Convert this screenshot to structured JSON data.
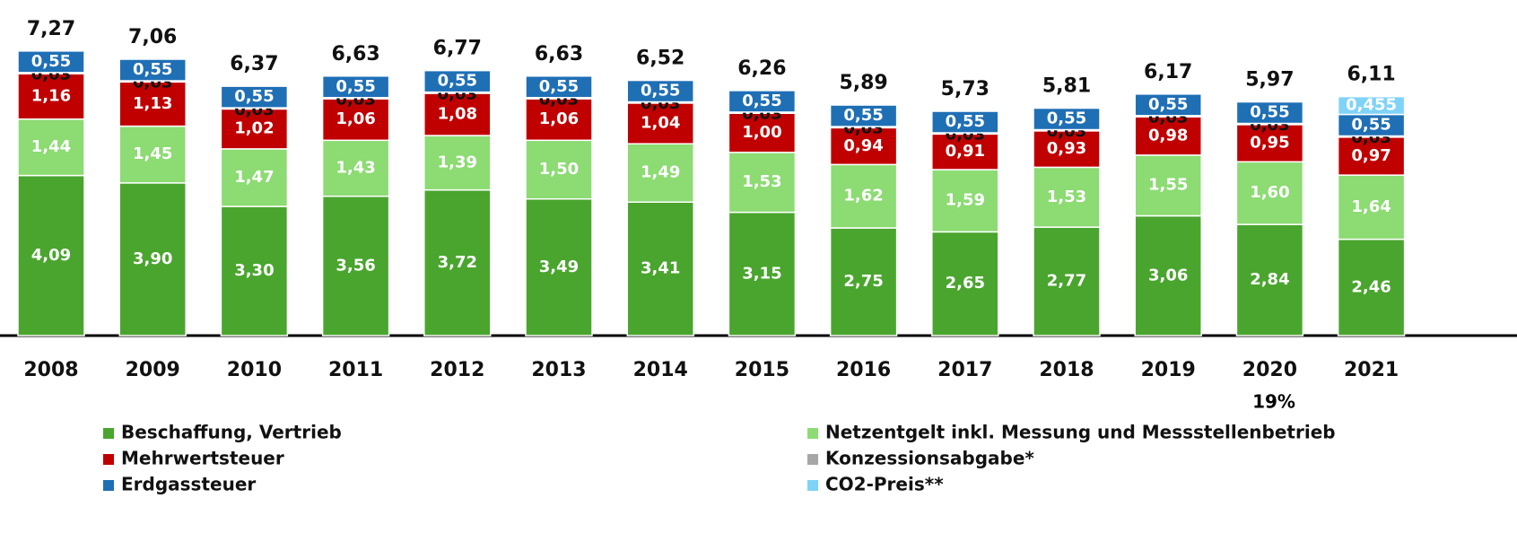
{
  "chart_data": {
    "type": "stacked_bar",
    "categories": [
      "2008",
      "2009",
      "2010",
      "2011",
      "2012",
      "2013",
      "2014",
      "2015",
      "2016",
      "2017",
      "2018",
      "2019",
      "2020",
      "2021"
    ],
    "series": [
      {
        "name": "Beschaffung, Vertrieb",
        "color": "#4aa52e",
        "values": [
          4.09,
          3.9,
          3.3,
          3.56,
          3.72,
          3.49,
          3.41,
          3.15,
          2.75,
          2.65,
          2.77,
          3.06,
          2.84,
          2.46
        ],
        "value_labels": [
          "4,09",
          "3,90",
          "3,30",
          "3,56",
          "3,72",
          "3,49",
          "3,41",
          "3,15",
          "2,75",
          "2,65",
          "2,77",
          "3,06",
          "2,84",
          "2,46"
        ]
      },
      {
        "name": "Netzentgelt inkl. Messung und Messstellenbetrieb",
        "color": "#8cdb73",
        "values": [
          1.44,
          1.45,
          1.47,
          1.43,
          1.39,
          1.5,
          1.49,
          1.53,
          1.62,
          1.59,
          1.53,
          1.55,
          1.6,
          1.64
        ],
        "value_labels": [
          "1,44",
          "1,45",
          "1,47",
          "1,43",
          "1,39",
          "1,50",
          "1,49",
          "1,53",
          "1,62",
          "1,59",
          "1,53",
          "1,55",
          "1,60",
          "1,64"
        ]
      },
      {
        "name": "Mehrwertsteuer",
        "color": "#c00000",
        "values": [
          1.16,
          1.13,
          1.02,
          1.06,
          1.08,
          1.06,
          1.04,
          1.0,
          0.94,
          0.91,
          0.93,
          0.98,
          0.95,
          0.97
        ],
        "value_labels": [
          "1,16",
          "1,13",
          "1,02",
          "1,06",
          "1,08",
          "1,06",
          "1,04",
          "1,00",
          "0,94",
          "0,91",
          "0,93",
          "0,98",
          "0,95",
          "0,97"
        ]
      },
      {
        "name": "Konzessionsabgabe*",
        "color": "#a6a6a6",
        "values": [
          0.03,
          0.03,
          0.03,
          0.03,
          0.03,
          0.03,
          0.03,
          0.03,
          0.03,
          0.03,
          0.03,
          0.03,
          0.03,
          0.03
        ],
        "value_labels": [
          "0,03",
          "0,03",
          "0,03",
          "0,03",
          "0,03",
          "0,03",
          "0,03",
          "0,03",
          "0,03",
          "0,03",
          "0,03",
          "0,03",
          "0,03",
          "0,03"
        ]
      },
      {
        "name": "Erdgassteuer",
        "color": "#1f6fb5",
        "values": [
          0.55,
          0.55,
          0.55,
          0.55,
          0.55,
          0.55,
          0.55,
          0.55,
          0.55,
          0.55,
          0.55,
          0.55,
          0.55,
          0.55
        ],
        "value_labels": [
          "0,55",
          "0,55",
          "0,55",
          "0,55",
          "0,55",
          "0,55",
          "0,55",
          "0,55",
          "0,55",
          "0,55",
          "0,55",
          "0,55",
          "0,55",
          "0,55"
        ]
      },
      {
        "name": "CO2-Preis**",
        "color": "#7fd3f7",
        "values": [
          null,
          null,
          null,
          null,
          null,
          null,
          null,
          null,
          null,
          null,
          null,
          null,
          null,
          0.455
        ],
        "value_labels": [
          null,
          null,
          null,
          null,
          null,
          null,
          null,
          null,
          null,
          null,
          null,
          null,
          null,
          "0,455"
        ]
      }
    ],
    "totals": [
      7.27,
      7.06,
      6.37,
      6.63,
      6.77,
      6.63,
      6.52,
      6.26,
      5.89,
      5.73,
      5.81,
      6.17,
      5.97,
      6.11
    ],
    "totals_labels": [
      "7,27",
      "7,06",
      "6,37",
      "6,63",
      "6,77",
      "6,63",
      "6,52",
      "6,26",
      "5,89",
      "5,73",
      "5,81",
      "6,17",
      "5,97",
      "6,11"
    ],
    "annotation": "19%",
    "ylim": [
      0,
      8
    ]
  }
}
